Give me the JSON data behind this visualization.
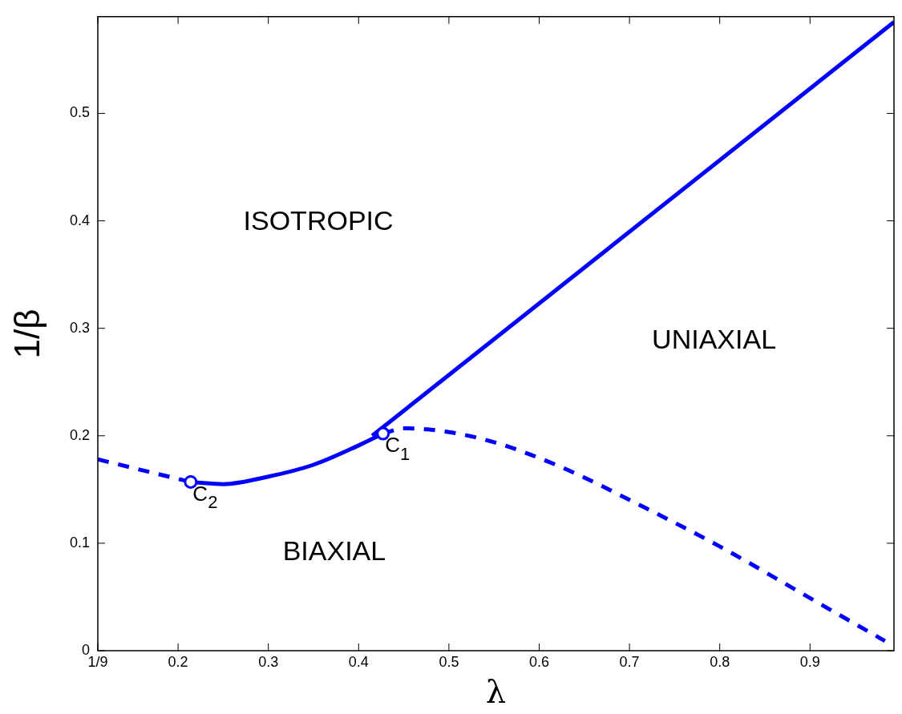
{
  "chart_data": {
    "type": "line",
    "xlabel": "λ",
    "ylabel": "1/β",
    "xlim": [
      0.1111,
      0.993
    ],
    "ylim": [
      0,
      0.59
    ],
    "xticks": [
      {
        "value": 0.1111,
        "label": "1/9"
      },
      0.2,
      0.3,
      0.4,
      0.5,
      0.6,
      0.7,
      0.8,
      0.9
    ],
    "yticks": [
      0,
      0.1,
      0.2,
      0.3,
      0.4,
      0.5
    ],
    "grid": false,
    "legend": false,
    "series": [
      {
        "type": "line",
        "line_style": "dashed",
        "color": "#0000ff",
        "x": [
          0.1111,
          0.214
        ],
        "values": [
          0.178,
          0.157
        ]
      },
      {
        "type": "line",
        "line_style": "solid",
        "color": "#0000ff",
        "x": [
          0.214,
          0.25,
          0.3,
          0.35,
          0.4,
          0.427
        ],
        "values": [
          0.157,
          0.155,
          0.162,
          0.173,
          0.191,
          0.202
        ]
      },
      {
        "type": "line",
        "line_style": "solid",
        "color": "#0000ff",
        "x": [
          0.415,
          0.993
        ],
        "values": [
          0.2,
          0.585
        ]
      },
      {
        "type": "line",
        "line_style": "dashed",
        "color": "#0000ff",
        "x": [
          0.427,
          0.45,
          0.496,
          0.55,
          0.624,
          0.715,
          0.8,
          0.904,
          0.983
        ],
        "values": [
          0.202,
          0.207,
          0.204,
          0.194,
          0.171,
          0.134,
          0.097,
          0.047,
          0.009
        ]
      },
      {
        "type": "scatter",
        "marker": "circle",
        "color": "#0000ff",
        "x": [
          0.214,
          0.427
        ],
        "values": [
          0.157,
          0.202
        ]
      }
    ],
    "annotations": [
      "ISOTROPIC",
      "UNIAXIAL",
      "BIAXIAL",
      {
        "text": "C$_{1}$",
        "x": 0.427,
        "y": 0.202
      },
      {
        "text": "C$_{2}$",
        "x": 0.214,
        "y": 0.157
      }
    ]
  }
}
